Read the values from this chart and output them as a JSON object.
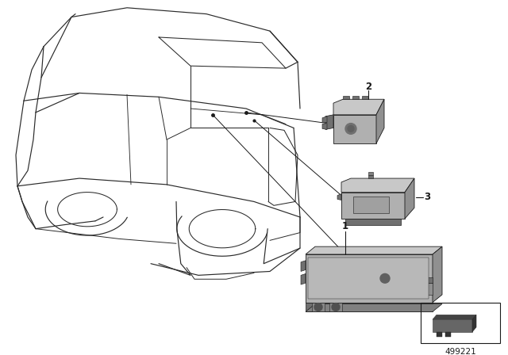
{
  "bg_color": "#ffffff",
  "line_color": "#1a1a1a",
  "car_line_color": "#2a2a2a",
  "part_face_color": "#b0b0b0",
  "part_top_color": "#c8c8c8",
  "part_side_color": "#909090",
  "part_dark_color": "#707070",
  "fig_width": 6.4,
  "fig_height": 4.48,
  "title_number": "499221",
  "label1": "1",
  "label2": "2",
  "label3": "3"
}
